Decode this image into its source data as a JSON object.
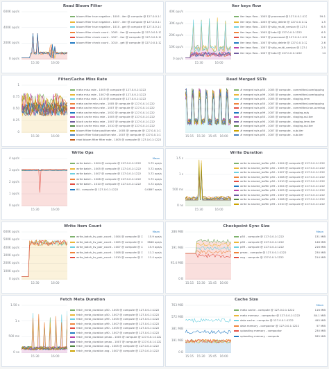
{
  "panels": [
    {
      "title": "Read Bloom Filter",
      "y_ticks": [
        "600K ops/s",
        "400K ops/s",
        "200K ops/s",
        "0 ops/s"
      ],
      "x_ticks": [
        "15:30",
        "16:00"
      ],
      "mean_header": "",
      "legend": [
        {
          "name": "bloom filter true negative - 1005 - iter @ compute @ 127.0.0.1:1222",
          "value": "",
          "color": "#7eb26d"
        },
        {
          "name": "bloom filter true negative - 1007 - iter @ compute @ 127.0.0.1:1222",
          "value": "",
          "color": "#eab839"
        },
        {
          "name": "bloom filter true negative - 1010 - get @ compute @ 127.0.0.1:1222",
          "value": "",
          "color": "#6ed0e0"
        },
        {
          "name": "bloom filter check count - 1005 - iter @ compute @ 127.0.0.1:1222",
          "value": "",
          "color": "#ef843c"
        },
        {
          "name": "bloom filter check count - 1007 - iter @ compute @ 127.0.0.1:1222",
          "value": "",
          "color": "#e24d42"
        },
        {
          "name": "bloom filter check count - 1010 - get @ compute @ 127.0.0.1:1222",
          "value": "",
          "color": "#1f78c1"
        }
      ]
    },
    {
      "title": "Iter keys flow",
      "y_ticks": [
        "40K ops/s",
        "30K ops/s",
        "20K ops/s",
        "10K ops/s",
        "0 ops/s"
      ],
      "x_ticks": [
        "15:30",
        "16:00"
      ],
      "mean_header": "",
      "legend": [
        {
          "name": "iter keys flow - 1005 @ processed @ 127.0.0.1:1222",
          "value": "59.1",
          "color": "#7eb26d"
        },
        {
          "name": "iter keys flow - 1005 @ skip_delete @ 127.0.0.1:1222",
          "value": "1.5",
          "color": "#eab839"
        },
        {
          "name": "iter keys flow - 1005 @ skip_multi_version @ 127.0.0.1:1222",
          "value": "6.5",
          "color": "#6ed0e0"
        },
        {
          "name": "iter keys flow - 1005 @ total @ 127.0.0.1:1222",
          "value": "6.5",
          "color": "#ef843c"
        },
        {
          "name": "iter keys flow - 1007 @ processed @ 127.0.0.1:1222",
          "value": "2.6",
          "color": "#e24d42"
        },
        {
          "name": "iter keys flow - 1007 @ skip_delete @ 127.0.0.1:1222",
          "value": "2.6",
          "color": "#1f78c1"
        },
        {
          "name": "iter keys flow - 1007 @ skip_multi_version @ 127.0.0.1:1222",
          "value": "2.5",
          "color": "#ba43a9"
        },
        {
          "name": "iter keys flow - 1007 @ total @ 127.0.0.1:1222",
          "value": "14",
          "color": "#705da0"
        }
      ]
    },
    {
      "title": "Filter/Cache Miss Rate",
      "y_ticks": [
        "1",
        "0.75",
        "0.50",
        "0.25",
        "0"
      ],
      "x_ticks": [
        "15:30",
        "16:00"
      ],
      "mean_header": "",
      "legend": [
        {
          "name": "meta miss rate - 1005 @ compute @ 127.0.0.1:1222",
          "value": "",
          "color": "#7eb26d"
        },
        {
          "name": "meta miss rate - 1007 @ compute @ 127.0.0.1:1222",
          "value": "",
          "color": "#eab839"
        },
        {
          "name": "meta miss rate - 1010 @ compute @ 127.0.0.1:1222",
          "value": "",
          "color": "#6ed0e0"
        },
        {
          "name": "meta cache miss rate - 1005 @ compute @ 127.0.0.1:1222",
          "value": "",
          "color": "#ef843c"
        },
        {
          "name": "meta cache miss rate - 1007 @ compute @ 127.0.0.1:1222",
          "value": "",
          "color": "#e24d42"
        },
        {
          "name": "meta cache miss rate - 1010 @ compute @ 127.0.0.1:1222",
          "value": "",
          "color": "#1f78c1"
        },
        {
          "name": "block cache miss rate - 1005 @ compute @ 127.0.0.1:1222",
          "value": "",
          "color": "#ba43a9"
        },
        {
          "name": "block cache miss rate - 1007 @ compute @ 127.0.0.1:1222",
          "value": "",
          "color": "#705da0"
        },
        {
          "name": "block cache miss rate - 1010 @ compute @ 127.0.0.1:1222",
          "value": "",
          "color": "#508642"
        },
        {
          "name": "bloom filter false positive rate - 1005 @ compute @ 127.0.0.1:1222",
          "value": "",
          "color": "#cca300"
        },
        {
          "name": "bloom filter false positive rate - 1007 @ compute @ 127.0.0.1:1222",
          "value": "",
          "color": "#447ebc"
        },
        {
          "name": "read bloom filter filter rate - 1005 @ compute @ 127.0.0.1:1222",
          "value": "",
          "color": "#c15c17"
        }
      ]
    },
    {
      "title": "Read Merged SSTs",
      "y_ticks": [
        "",
        "",
        "",
        "",
        ""
      ],
      "x_ticks": [
        "15:15",
        "15:30",
        "15:45",
        "16:00"
      ],
      "mean_header": "",
      "legend": [
        {
          "name": "# merged ssts p50 - 1005 @ compute - committed-overlapping",
          "value": "",
          "color": "#7eb26d"
        },
        {
          "name": "# merged ssts p99 - 1005 @ compute - committed-overlapping",
          "value": "",
          "color": "#eab839"
        },
        {
          "name": "# merged ssts p90 - 1005 @ compute - staging-imm",
          "value": "",
          "color": "#6ed0e0"
        },
        {
          "name": "# merged ssts p50 - 1007 @ compute - committed-overlapping",
          "value": "",
          "color": "#ef843c"
        },
        {
          "name": "# merged ssts p90 - 1007 @ compute - committed-non-overlapping",
          "value": "",
          "color": "#e24d42"
        },
        {
          "name": "# merged ssts p99 - 1007 @ compute - staging-ssts",
          "value": "",
          "color": "#1f78c1"
        },
        {
          "name": "# merged ssts p50 - 1005 @ compute - staging-sst-tier",
          "value": "",
          "color": "#ba43a9"
        },
        {
          "name": "# merged ssts p90 - 1005 @ compute - staging-imm-tier",
          "value": "",
          "color": "#705da0"
        },
        {
          "name": "# merged ssts p99 - 1007 @ compute - staging-sst-tier",
          "value": "",
          "color": "#508642"
        },
        {
          "name": "# merged ssts p50 - 1007 @ compute - sub-tier",
          "value": "",
          "color": "#cca300"
        },
        {
          "name": "# merged ssts p90 - 1007 @ compute - sub-tier",
          "value": "",
          "color": "#447ebc"
        }
      ]
    },
    {
      "title": "Write Ops",
      "y_ticks": [
        "4 ops/s",
        "3 ops/s",
        "2 ops/s",
        "1 ops/s",
        "0 ops/s"
      ],
      "x_ticks": [
        "15:30",
        "16:00"
      ],
      "mean_header": "Mean",
      "legend": [
        {
          "name": "write batch - 1004 @ compute @ 127.0.0.1:1222",
          "value": "3.72 ops/s",
          "color": "#7eb26d"
        },
        {
          "name": "write batch - 1005 @ compute @ 127.0.0.1:1222",
          "value": "3.72 ops/s",
          "color": "#eab839"
        },
        {
          "name": "write batch - 1007 @ compute @ 127.0.0.1:1222",
          "value": "3.72 ops/s",
          "color": "#6ed0e0"
        },
        {
          "name": "write batch - 1008 @ compute @ 127.0.0.1:1222",
          "value": "3.72 ops/s",
          "color": "#ef843c"
        },
        {
          "name": "write batch - 1010 @ compute @ 127.0.0.1:1222",
          "value": "3.72 ops/s",
          "color": "#e24d42"
        },
        {
          "name": "fill - compute @ 127.0.0.1:1222",
          "value": "0.0897 ops/s",
          "color": "#1f78c1"
        }
      ]
    },
    {
      "title": "Write Duration",
      "y_ticks": [
        "1.5 s",
        "1 s",
        "500 ms",
        "0 ns"
      ],
      "x_ticks": [
        "15:30",
        "16:00"
      ],
      "mean_header": "",
      "legend": [
        {
          "name": "write to shared_buffer p50 - 1004 @ compute @ 127.0.0.1:1222",
          "value": "",
          "color": "#7eb26d"
        },
        {
          "name": "write to shared_buffer p50 - 1005 @ compute @ 127.0.0.1:1222",
          "value": "",
          "color": "#eab839"
        },
        {
          "name": "write to shared_buffer p50 - 1007 @ compute @ 127.0.0.1:1222",
          "value": "",
          "color": "#6ed0e0"
        },
        {
          "name": "write to shared_buffer p50 - 1008 @ compute @ 127.0.0.1:1222",
          "value": "",
          "color": "#ef843c"
        },
        {
          "name": "write to shared_buffer p50 - 1010 @ compute @ 127.0.0.1:1222",
          "value": "",
          "color": "#e24d42"
        },
        {
          "name": "write to shared_buffer p99 - 1004 @ compute @ 127.0.0.1:1222",
          "value": "",
          "color": "#1f78c1"
        },
        {
          "name": "write to shared_buffer p99 - 1005 @ compute @ 127.0.0.1:1222",
          "value": "",
          "color": "#ba43a9"
        },
        {
          "name": "write to shared_buffer p99 - 1007 @ compute @ 127.0.0.1:1222",
          "value": "",
          "color": "#705da0"
        },
        {
          "name": "write to shared_buffer p99 - 1008 @ compute @ 127.0.0.1:1222",
          "value": "",
          "color": "#508642"
        },
        {
          "name": "write to shared_buffer p99 - 1010 @ compute @ 127.0.0.1:1222",
          "value": "",
          "color": "#cca300"
        }
      ]
    },
    {
      "title": "Write Item Count",
      "y_ticks": [
        "600K ops/s",
        "500K ops/s",
        "400K ops/s",
        "300K ops/s",
        "200K ops/s",
        "100K ops/s",
        "0 ops/s"
      ],
      "x_ticks": [
        "15:30",
        "16:00"
      ],
      "mean_header": "Mean",
      "legend": [
        {
          "name": "write_batch_kv_pair_count - 1004 @ compute @ 127.0.0.1:1222",
          "value": "15.9 ops/s",
          "color": "#7eb26d"
        },
        {
          "name": "write_batch_kv_pair_count - 1005 @ compute @ 127.0.0.1:1222",
          "value": "384K ops/s",
          "color": "#eab839"
        },
        {
          "name": "write_batch_kv_pair_count - 1007 @ compute @ 127.0.0.1:1222",
          "value": "15.9 ops/s",
          "color": "#6ed0e0"
        },
        {
          "name": "write_batch_kv_pair_count - 1008 @ compute @ 127.0.0.1:1222",
          "value": "11.2 ops/s",
          "color": "#ef843c"
        },
        {
          "name": "write_batch_kv_pair_count - 1010 @ compute @ 127.0.0.1:1222",
          "value": "11.4 ops/s",
          "color": "#e24d42"
        }
      ]
    },
    {
      "title": "Checkpoint Sync Size",
      "y_ticks": [
        "286 MiB",
        "191 MiB",
        "95.4 MiB",
        "0 B"
      ],
      "x_ticks": [
        "15:15",
        "15:30",
        "15:45",
        "16:00"
      ],
      "mean_header": "Mean",
      "legend": [
        {
          "name": "p50 - compute @ 127.0.0.1:1222",
          "value": "131 MiB",
          "color": "#7eb26d"
        },
        {
          "name": "p90 - compute @ 127.0.0.1:1222",
          "value": "148 MiB",
          "color": "#eab839"
        },
        {
          "name": "p99 - compute @ 127.0.0.1:1222",
          "value": "216 MiB",
          "color": "#6ed0e0"
        },
        {
          "name": "pmax - compute @ 127.0.0.1:1222",
          "value": "230 MiB",
          "color": "#ef843c"
        },
        {
          "name": "avg - compute @ 127.0.0.1:1222",
          "value": "214 MiB",
          "color": "#e24d42"
        }
      ]
    },
    {
      "title": "Fetch Meta Duration",
      "y_ticks": [
        "1.50 s",
        "1 s",
        "500 ms",
        "0 ns"
      ],
      "x_ticks": [
        "15:30",
        "16:00"
      ],
      "mean_header": "",
      "legend": [
        {
          "name": "fetch_meta_duration p50 - 1005 @ compute @ 127.0.0.1:1222",
          "value": "",
          "color": "#7eb26d"
        },
        {
          "name": "fetch_meta_duration p50 - 1007 @ compute @ 127.0.0.1:1222",
          "value": "",
          "color": "#eab839"
        },
        {
          "name": "fetch_meta_duration p99 - 1005 @ compute @ 127.0.0.1:1222",
          "value": "",
          "color": "#6ed0e0"
        },
        {
          "name": "fetch_meta_duration p99 - 1007 @ compute @ 127.0.0.1:1222",
          "value": "",
          "color": "#ef843c"
        },
        {
          "name": "fetch_meta_duration p90 - 1005 @ compute @ 127.0.0.1:1222",
          "value": "",
          "color": "#e24d42"
        },
        {
          "name": "fetch_meta_duration p90 - 1007 @ compute @ 127.0.0.1:1222",
          "value": "",
          "color": "#1f78c1"
        },
        {
          "name": "fetch_meta_duration pmax - 1005 @ compute @ 127.0.0.1:1222",
          "value": "",
          "color": "#ba43a9"
        },
        {
          "name": "fetch_meta_duration pmax - 1007 @ compute @ 127.0.0.1:1222",
          "value": "",
          "color": "#705da0"
        },
        {
          "name": "fetch_meta_duration avg - 1005 @ compute @ 127.0.0.1:1222",
          "value": "",
          "color": "#508642"
        },
        {
          "name": "fetch_meta_duration avg - 1007 @ compute @ 127.0.0.1:1222",
          "value": "",
          "color": "#cca300"
        }
      ]
    },
    {
      "title": "Cache Size",
      "y_ticks": [
        "763 MiB",
        "572 MiB",
        "381 MiB",
        "191 MiB",
        "0 B"
      ],
      "x_ticks": [
        "15:15",
        "15:30",
        "15:45",
        "16:00"
      ],
      "mean_header": "Mean",
      "legend": [
        {
          "name": "meta cache - compute @ 127.0.0.1:1222",
          "value": "116 MiB",
          "color": "#7eb26d"
        },
        {
          "name": "meta memory - compactor @ 127.0.0.1:1222",
          "value": "84.1 MiB",
          "color": "#eab839"
        },
        {
          "name": "data cache - compute @ 127.0.0.1:1222",
          "value": "495 MiB",
          "color": "#6ed0e0"
        },
        {
          "name": "data memory - compactor @ 127.0.0.1:1222",
          "value": "57 MiB",
          "color": "#ef843c"
        },
        {
          "name": "uploading memory - compactor",
          "value": "230 MiB",
          "color": "#e24d42"
        },
        {
          "name": "uploading memory - compute",
          "value": "285 MiB",
          "color": "#1f78c1"
        }
      ]
    }
  ]
}
